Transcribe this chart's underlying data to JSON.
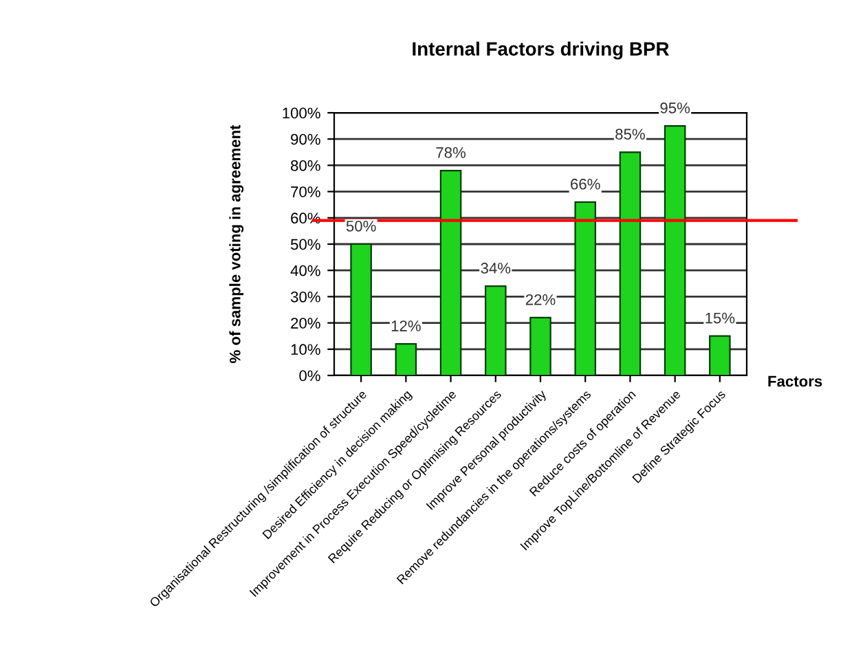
{
  "chart_data": {
    "type": "bar",
    "title": "Internal Factors driving BPR",
    "xlabel": "Factors",
    "ylabel": "% of sample voting in agreement",
    "categories": [
      "Organisational Restructuring /simplification of structure",
      "Desired Efficiency in decision making",
      "Improvement in Process Execution Speed/cycletime",
      "Require Reducing or Optimising Resources",
      "Improve Personal productivity",
      "Remove redundancies in the operations/systems",
      "Reduce costs of operation",
      "Improve TopLine/Bottomline of Revenue",
      "Define Strategic Focus"
    ],
    "values": [
      50,
      12,
      78,
      34,
      22,
      66,
      85,
      95,
      15
    ],
    "value_labels": [
      "50%",
      "12%",
      "78%",
      "34%",
      "22%",
      "66%",
      "85%",
      "95%",
      "15%"
    ],
    "color": "#1ed41e",
    "ylim": [
      0,
      100
    ],
    "yticks": [
      {
        "value": 0,
        "label": "0%"
      },
      {
        "value": 10,
        "label": "10%"
      },
      {
        "value": 20,
        "label": "20%"
      },
      {
        "value": 30,
        "label": "30%"
      },
      {
        "value": 40,
        "label": "40%"
      },
      {
        "value": 50,
        "label": "50%"
      },
      {
        "value": 60,
        "label": "60%"
      },
      {
        "value": 70,
        "label": "70%"
      },
      {
        "value": 80,
        "label": "80%"
      },
      {
        "value": 90,
        "label": "90%"
      },
      {
        "value": 100,
        "label": "100%"
      }
    ],
    "grid": "y",
    "ref_lines": [
      {
        "axis": "y",
        "value": 59,
        "color": "#ff0000"
      }
    ]
  }
}
